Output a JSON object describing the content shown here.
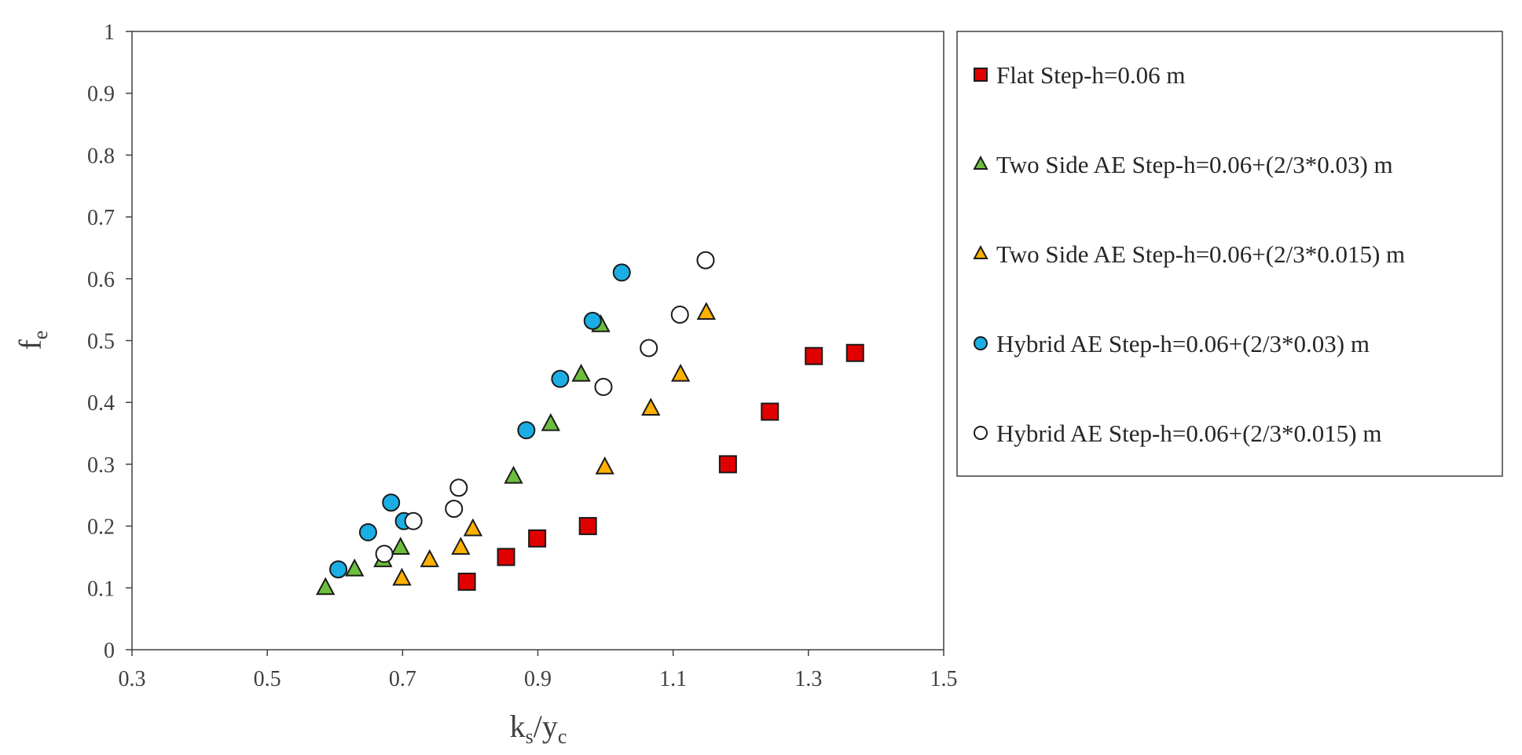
{
  "chart_data": {
    "type": "scatter",
    "title": "",
    "xlabel": {
      "main": "k",
      "sub1": "s",
      "sep": "/y",
      "sub2": "c"
    },
    "ylabel": {
      "main": "f",
      "sub": "e"
    },
    "xlim": [
      0.3,
      1.5
    ],
    "ylim": [
      0,
      1
    ],
    "xticks": [
      "0.3",
      "0.5",
      "0.7",
      "0.9",
      "1.1",
      "1.3",
      "1.5"
    ],
    "xtick_values": [
      0.3,
      0.5,
      0.7,
      0.9,
      1.1,
      1.3,
      1.5
    ],
    "yticks": [
      "0",
      "0.1",
      "0.2",
      "0.3",
      "0.4",
      "0.5",
      "0.6",
      "0.7",
      "0.8",
      "0.9",
      "1"
    ],
    "ytick_values": [
      0,
      0.1,
      0.2,
      0.3,
      0.4,
      0.5,
      0.6,
      0.7,
      0.8,
      0.9,
      1
    ],
    "legend_position": "right",
    "series": [
      {
        "name": "Flat Step-h=0.06 m",
        "marker": "square",
        "color": "#e00000",
        "points": [
          [
            0.795,
            0.11
          ],
          [
            0.853,
            0.15
          ],
          [
            0.899,
            0.18
          ],
          [
            0.974,
            0.2
          ],
          [
            1.181,
            0.3
          ],
          [
            1.243,
            0.385
          ],
          [
            1.308,
            0.475
          ],
          [
            1.369,
            0.48
          ]
        ]
      },
      {
        "name": "Two Side AE Step-h=0.06+(2/3*0.03) m",
        "marker": "triangle",
        "color": "#6cbf3c",
        "points": [
          [
            0.586,
            0.1
          ],
          [
            0.629,
            0.13
          ],
          [
            0.671,
            0.145
          ],
          [
            0.697,
            0.165
          ],
          [
            0.864,
            0.28
          ],
          [
            0.919,
            0.365
          ],
          [
            0.964,
            0.445
          ],
          [
            0.993,
            0.525
          ]
        ]
      },
      {
        "name": "Two Side AE Step-h=0.06+(2/3*0.015) m",
        "marker": "triangle",
        "color": "#ffb000",
        "points": [
          [
            0.699,
            0.115
          ],
          [
            0.74,
            0.145
          ],
          [
            0.786,
            0.165
          ],
          [
            0.804,
            0.195
          ],
          [
            0.999,
            0.295
          ],
          [
            1.067,
            0.39
          ],
          [
            1.111,
            0.445
          ],
          [
            1.149,
            0.545
          ]
        ]
      },
      {
        "name": "Hybrid AE Step-h=0.06+(2/3*0.03) m",
        "marker": "circle",
        "color": "#1aaee4",
        "points": [
          [
            0.605,
            0.13
          ],
          [
            0.649,
            0.19
          ],
          [
            0.683,
            0.238
          ],
          [
            0.702,
            0.208
          ],
          [
            0.883,
            0.355
          ],
          [
            0.933,
            0.438
          ],
          [
            0.981,
            0.532
          ],
          [
            1.024,
            0.61
          ]
        ]
      },
      {
        "name": "Hybrid AE Step-h=0.06+(2/3*0.015) m",
        "marker": "circle",
        "color": "#ffffff",
        "points": [
          [
            0.673,
            0.155
          ],
          [
            0.716,
            0.208
          ],
          [
            0.776,
            0.228
          ],
          [
            0.783,
            0.262
          ],
          [
            0.997,
            0.425
          ],
          [
            1.064,
            0.488
          ],
          [
            1.11,
            0.542
          ],
          [
            1.148,
            0.63
          ]
        ]
      }
    ]
  }
}
